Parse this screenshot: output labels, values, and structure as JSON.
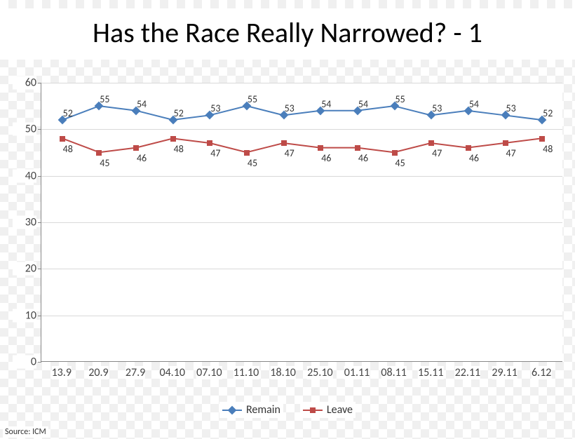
{
  "title": "Has the Race Really Narrowed? - 1",
  "source_label": "Source: ICM",
  "chart": {
    "type": "line",
    "ylim": [
      0,
      60
    ],
    "ytick_step": 10,
    "yticks": [
      0,
      10,
      20,
      30,
      40,
      50,
      60
    ],
    "categories": [
      "13.9",
      "20.9",
      "27.9",
      "04.10",
      "07.10",
      "11.10",
      "18.10",
      "25.10",
      "01.11",
      "08.11",
      "15.11",
      "22.11",
      "29.11",
      "6.12"
    ],
    "series": [
      {
        "name": "Remain",
        "values": [
          52,
          55,
          54,
          52,
          53,
          55,
          53,
          54,
          54,
          55,
          53,
          54,
          53,
          52
        ],
        "color": "#4a7ebb",
        "line_width": 2,
        "marker": "diamond",
        "marker_size": 9,
        "label_offset": -18
      },
      {
        "name": "Leave",
        "values": [
          48,
          45,
          46,
          48,
          47,
          45,
          47,
          46,
          46,
          45,
          47,
          46,
          47,
          48
        ],
        "color": "#be4b48",
        "line_width": 2,
        "marker": "square",
        "marker_size": 8,
        "label_offset": 6
      }
    ],
    "background_color": "#ffffff",
    "grid_color": "#d9d9d9",
    "axis_color": "#888888",
    "text_color": "#444444",
    "label_fontsize": 16,
    "data_label_fontsize": 14,
    "title_fontsize": 40
  }
}
